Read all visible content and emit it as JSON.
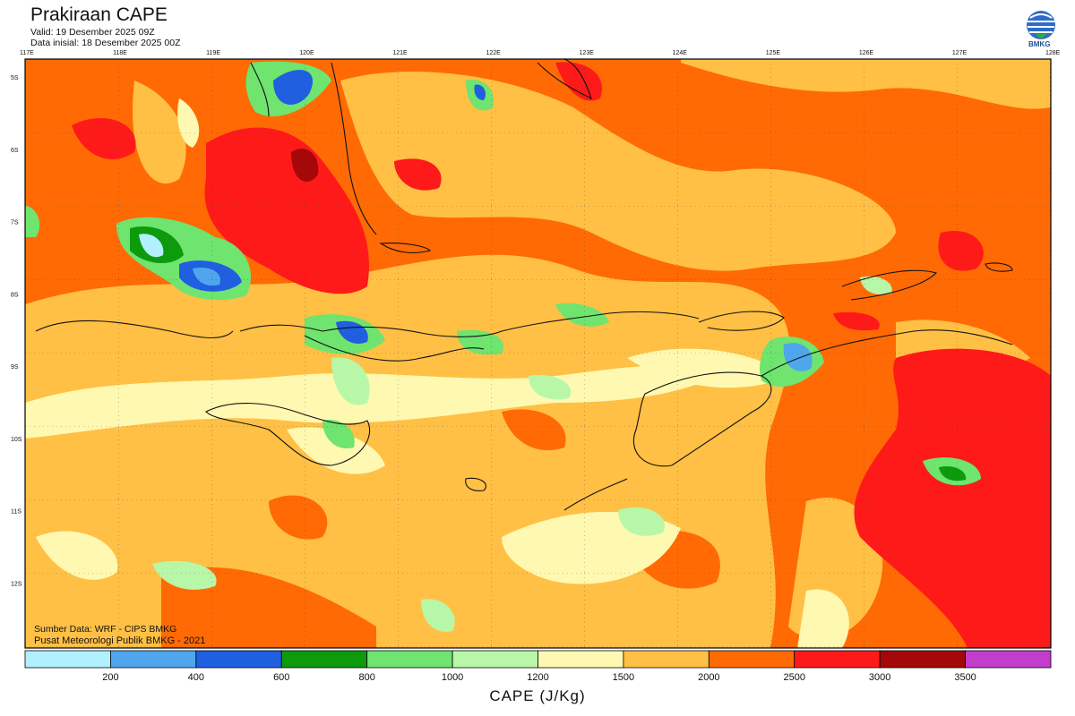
{
  "header": {
    "title": "Prakiraan CAPE",
    "valid": "Valid: 19 Desember 2025 09Z",
    "initial": "Data inisial: 18 Desember 2025 00Z"
  },
  "logo": {
    "text": "BMKG"
  },
  "map": {
    "lon_labels": [
      "117E",
      "118E",
      "119E",
      "120E",
      "121E",
      "122E",
      "123E",
      "124E",
      "125E",
      "126E",
      "127E",
      "128E"
    ],
    "lat_labels": [
      "5S",
      "6S",
      "7S",
      "8S",
      "9S",
      "10S",
      "11S",
      "12S"
    ],
    "lon_range": [
      117,
      128
    ],
    "lat_range": [
      -4.75,
      -12.9
    ]
  },
  "footer": {
    "source": "Sumber Data: WRF - CIPS BMKG",
    "center": "Pusat Meteorologi Publik BMKG - 2021"
  },
  "colorbar": {
    "ticks": [
      "200",
      "400",
      "600",
      "800",
      "1000",
      "1200",
      "1500",
      "2000",
      "2500",
      "3000",
      "3500"
    ],
    "colors": [
      "#b0f0ff",
      "#4fa6ec",
      "#1f5fe0",
      "#0d9a0d",
      "#6fe46f",
      "#b8f7a8",
      "#fff8b0",
      "#ffc045",
      "#ff6a05",
      "#ff1a1a",
      "#a50808",
      "#c43ccc"
    ],
    "title": "CAPE (J/Kg)"
  }
}
